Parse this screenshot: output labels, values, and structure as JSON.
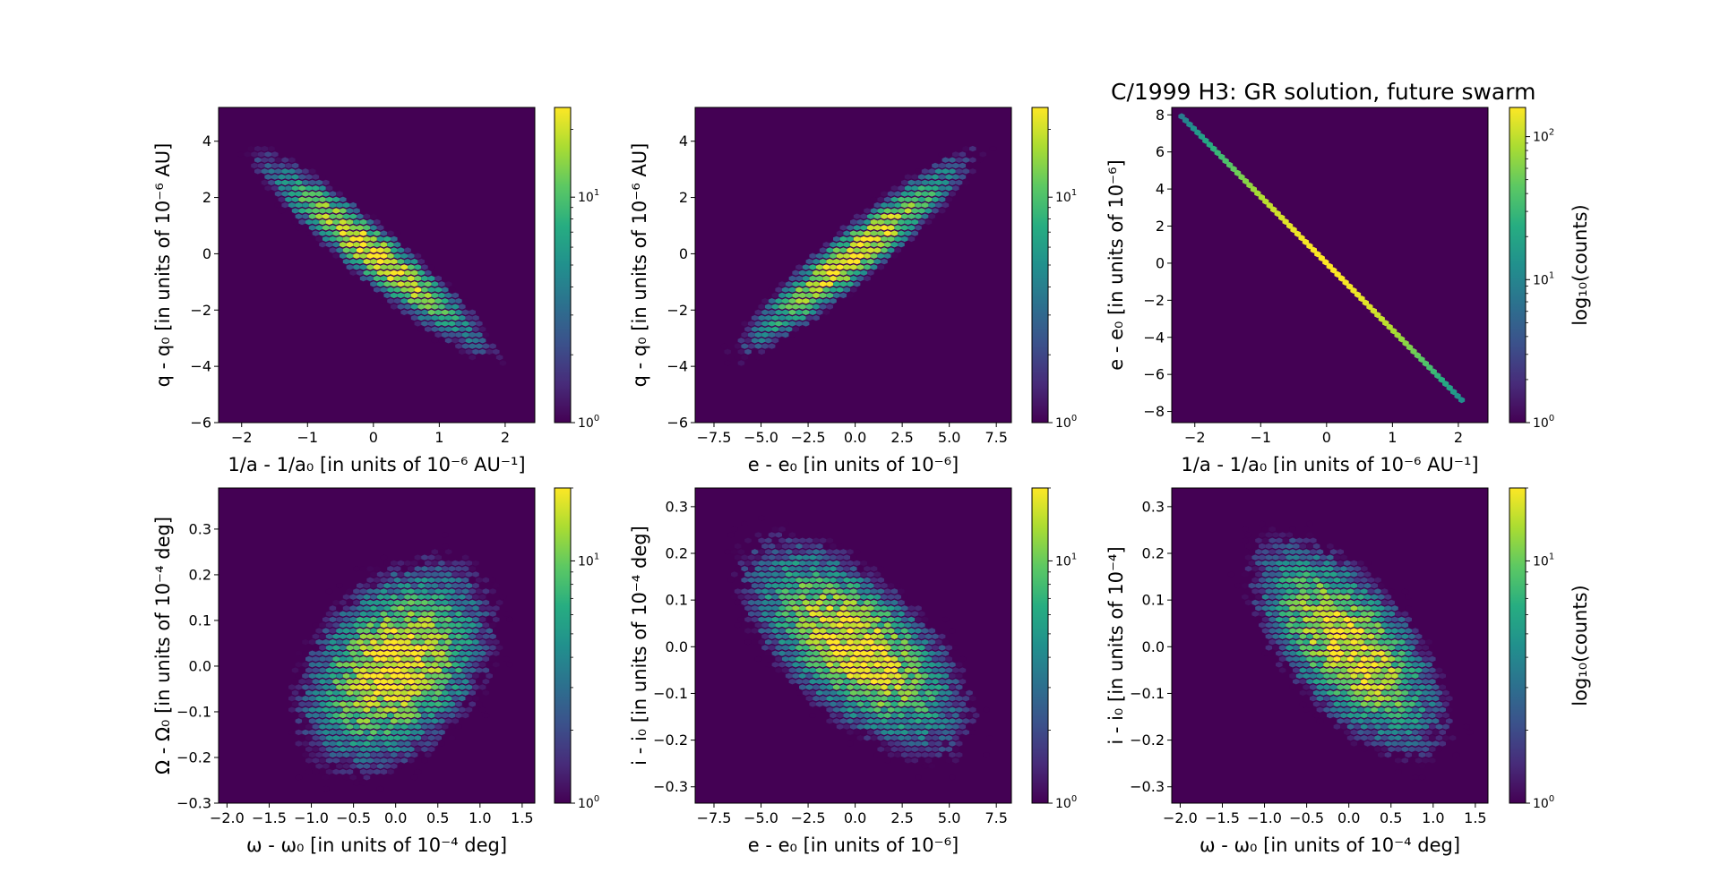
{
  "figure": {
    "title": "C/1999 H3: GR solution, future swarm"
  },
  "chart_data": [
    {
      "type": "heatmap",
      "variant": "hexbin-log-counts",
      "xlabel": "1/a - 1/a₀ [in units of 10⁻⁶ AU⁻¹]",
      "ylabel": "q - q₀ [in units of 10⁻⁶ AU]",
      "xlim": [
        -2.35,
        2.45
      ],
      "ylim": [
        -6.0,
        5.2
      ],
      "xticks": [
        -2,
        -1,
        0,
        1,
        2
      ],
      "yticks": [
        -6,
        -4,
        -2,
        0,
        2,
        4
      ],
      "colorbar": {
        "scale": "log",
        "min": 1,
        "max": 25,
        "ticks": [
          1,
          10
        ],
        "label": ""
      },
      "distribution": {
        "mean_x": 0.0,
        "mean_y": 0.0,
        "sd_x": 0.75,
        "sd_y": 1.5,
        "correlation": -0.94,
        "peak_count": 25
      }
    },
    {
      "type": "heatmap",
      "variant": "hexbin-log-counts",
      "xlabel": "e - e₀ [in units of 10⁻⁶]",
      "ylabel": "q - q₀ [in units of 10⁻⁶ AU]",
      "xlim": [
        -8.5,
        8.3
      ],
      "ylim": [
        -6.0,
        5.2
      ],
      "xticks": [
        -7.5,
        -5.0,
        -2.5,
        0.0,
        2.5,
        5.0,
        7.5
      ],
      "yticks": [
        -6,
        -4,
        -2,
        0,
        2,
        4
      ],
      "colorbar": {
        "scale": "log",
        "min": 1,
        "max": 25,
        "ticks": [
          1,
          10
        ],
        "label": ""
      },
      "distribution": {
        "mean_x": 0.0,
        "mean_y": 0.0,
        "sd_x": 2.6,
        "sd_y": 1.5,
        "correlation": 0.94,
        "peak_count": 25
      }
    },
    {
      "type": "heatmap",
      "variant": "hexbin-log-counts",
      "xlabel": "1/a - 1/a₀ [in units of 10⁻⁶ AU⁻¹]",
      "ylabel": "e - e₀ [in units of 10⁻⁶]",
      "xlim": [
        -2.35,
        2.45
      ],
      "ylim": [
        -8.6,
        8.4
      ],
      "xticks": [
        -2,
        -1,
        0,
        1,
        2
      ],
      "yticks": [
        -8,
        -6,
        -4,
        -2,
        0,
        2,
        4,
        6,
        8
      ],
      "colorbar": {
        "scale": "log",
        "min": 1,
        "max": 160,
        "ticks": [
          1,
          10,
          100
        ],
        "label": "log₁₀(counts)"
      },
      "distribution": {
        "line_slope": -3.6,
        "x_range": [
          -2.2,
          2.05
        ],
        "peak_count": 160
      }
    },
    {
      "type": "heatmap",
      "variant": "hexbin-log-counts",
      "xlabel": "ω - ω₀ [in units of 10⁻⁴ deg]",
      "ylabel": "Ω - Ω₀ [in units of 10⁻⁴ deg]",
      "xlim": [
        -2.1,
        1.65
      ],
      "ylim": [
        -0.3,
        0.39
      ],
      "xticks": [
        -2.0,
        -1.5,
        -1.0,
        -0.5,
        0.0,
        0.5,
        1.0,
        1.5
      ],
      "yticks": [
        -0.3,
        -0.2,
        -0.1,
        0.0,
        0.1,
        0.2,
        0.3
      ],
      "colorbar": {
        "scale": "log",
        "min": 1,
        "max": 20,
        "ticks": [
          1,
          10
        ],
        "label": ""
      },
      "distribution": {
        "mean_x": 0.0,
        "mean_y": 0.0,
        "sd_x": 0.5,
        "sd_y": 0.1,
        "correlation": 0.35,
        "peak_count": 20
      }
    },
    {
      "type": "heatmap",
      "variant": "hexbin-log-counts",
      "xlabel": "e - e₀ [in units of 10⁻⁶]",
      "ylabel": "i - i₀ [in units of 10⁻⁴ deg]",
      "xlim": [
        -8.5,
        8.3
      ],
      "ylim": [
        -0.335,
        0.34
      ],
      "xticks": [
        -7.5,
        -5.0,
        -2.5,
        0.0,
        2.5,
        5.0,
        7.5
      ],
      "yticks": [
        -0.3,
        -0.2,
        -0.1,
        0.0,
        0.1,
        0.2,
        0.3
      ],
      "colorbar": {
        "scale": "log",
        "min": 1,
        "max": 20,
        "ticks": [
          1,
          10
        ],
        "label": ""
      },
      "distribution": {
        "mean_x": 0.0,
        "mean_y": 0.0,
        "sd_x": 2.6,
        "sd_y": 0.1,
        "correlation": -0.62,
        "peak_count": 20
      }
    },
    {
      "type": "heatmap",
      "variant": "hexbin-log-counts",
      "xlabel": "ω - ω₀ [in units of 10⁻⁴ deg]",
      "ylabel": "i - i₀ [in units of 10⁻⁴]",
      "xlim": [
        -2.1,
        1.65
      ],
      "ylim": [
        -0.335,
        0.34
      ],
      "xticks": [
        -2.0,
        -1.5,
        -1.0,
        -0.5,
        0.0,
        0.5,
        1.0,
        1.5
      ],
      "yticks": [
        -0.3,
        -0.2,
        -0.1,
        0.0,
        0.1,
        0.2,
        0.3
      ],
      "colorbar": {
        "scale": "log",
        "min": 1,
        "max": 20,
        "ticks": [
          1,
          10
        ],
        "label": "log₁₀(counts)"
      },
      "distribution": {
        "mean_x": 0.0,
        "mean_y": 0.0,
        "sd_x": 0.5,
        "sd_y": 0.1,
        "correlation": -0.62,
        "peak_count": 20
      }
    }
  ],
  "style": {
    "background_color": "#440154",
    "colormap": "viridis"
  }
}
